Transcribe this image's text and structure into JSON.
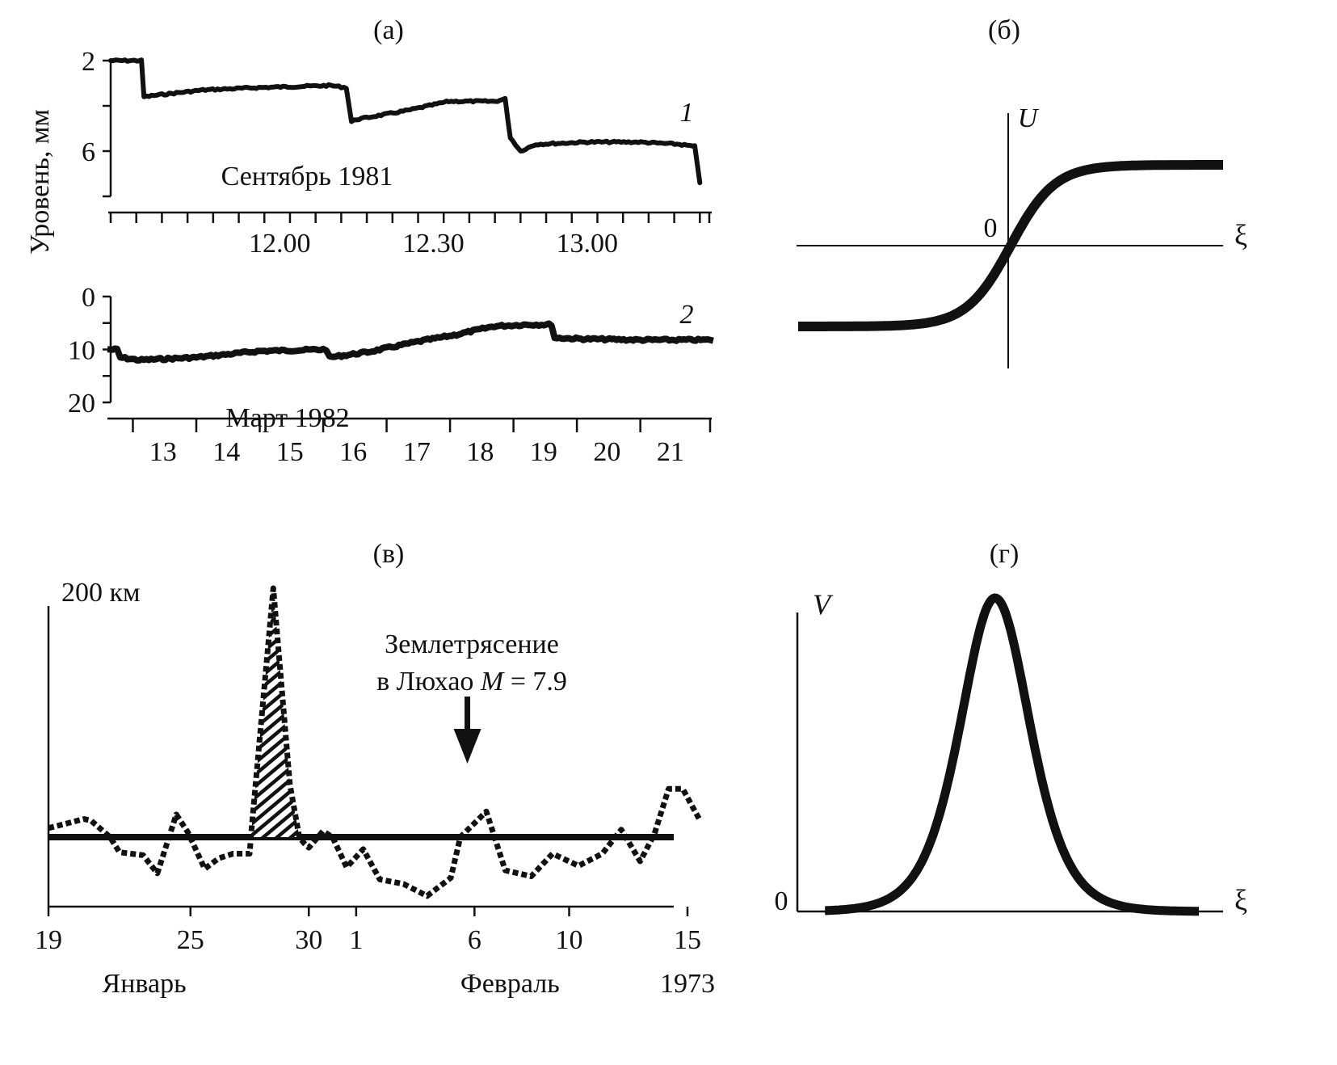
{
  "colors": {
    "ink": "#111111",
    "background": "#ffffff"
  },
  "chart_data": [
    {
      "id": "a1",
      "type": "line",
      "panel_label": "(а)",
      "ylabel": "Уровень, мм",
      "caption": "Сентябрь 1981",
      "curve_label": "1",
      "y_axis": {
        "range": [
          2,
          8
        ],
        "inverted": true,
        "tick_values": [
          2,
          4,
          6,
          8
        ],
        "tick_labels": [
          "2",
          "",
          "6",
          ""
        ]
      },
      "x_axis": {
        "unit": "minutes after 11:30",
        "range": [
          -3,
          114
        ],
        "tick_step": 5,
        "labeled_ticks": [
          {
            "value": 30,
            "label": "12.00"
          },
          {
            "value": 60,
            "label": "12.30"
          },
          {
            "value": 90,
            "label": "13.00"
          }
        ]
      },
      "series": [
        {
          "name": "1",
          "x": [
            -3,
            3,
            3.5,
            7,
            15,
            25,
            40,
            43,
            44,
            45,
            55,
            63,
            72,
            74,
            75,
            77,
            80,
            90,
            100,
            108,
            111,
            111.5,
            112
          ],
          "y": [
            2.0,
            2.0,
            3.6,
            3.5,
            3.3,
            3.2,
            3.1,
            3.2,
            4.7,
            4.6,
            4.2,
            3.8,
            3.8,
            3.7,
            5.4,
            6.0,
            5.7,
            5.6,
            5.6,
            5.7,
            5.8,
            6.6,
            7.4
          ]
        }
      ]
    },
    {
      "id": "a2",
      "type": "line",
      "caption": "Март 1982",
      "curve_label": "2",
      "y_axis": {
        "range": [
          0,
          20
        ],
        "inverted": true,
        "tick_values": [
          0,
          5,
          10,
          15,
          20
        ],
        "tick_labels": [
          "0",
          "",
          "10",
          "",
          "20"
        ]
      },
      "x_axis": {
        "unit": "day of March 1982",
        "range": [
          12.15,
          21.6
        ],
        "ticks": [
          12.5,
          13.5,
          14.5,
          15.5,
          16.5,
          17.5,
          18.5,
          19.5,
          20.5,
          21.6
        ],
        "tick_labels": [
          {
            "value": 13,
            "label": "13"
          },
          {
            "value": 14,
            "label": "14"
          },
          {
            "value": 15,
            "label": "15"
          },
          {
            "value": 16,
            "label": "16"
          },
          {
            "value": 17,
            "label": "17"
          },
          {
            "value": 18,
            "label": "18"
          },
          {
            "value": 19,
            "label": "19"
          },
          {
            "value": 20,
            "label": "20"
          },
          {
            "value": 21,
            "label": "21"
          }
        ]
      },
      "series": [
        {
          "name": "2",
          "x": [
            12.15,
            12.25,
            12.3,
            12.6,
            13.5,
            14.5,
            15.5,
            15.55,
            15.6,
            16.2,
            17.0,
            17.6,
            18.2,
            18.7,
            19.1,
            19.15,
            19.6,
            20.5,
            21.6
          ],
          "y": [
            10,
            10,
            11.5,
            12,
            11.5,
            10.3,
            10,
            10,
            11.5,
            10.5,
            8.5,
            7.2,
            5.6,
            5.3,
            5.3,
            7.8,
            8.0,
            8.2,
            8.2
          ]
        }
      ]
    },
    {
      "id": "b",
      "type": "line",
      "panel_label": "(б)",
      "ylabel": "U",
      "xlabel": "ξ",
      "origin_label": "0",
      "description": "Kink (tanh-shaped) profile U(ξ)",
      "x_axis": {
        "range": [
          -5,
          5
        ]
      },
      "y_axis": {
        "range": [
          -1.2,
          1.6
        ]
      },
      "series": [
        {
          "name": "U",
          "function": "tanh",
          "scale": 0.8,
          "amplitude": 1.0
        }
      ]
    },
    {
      "id": "c",
      "type": "line",
      "panel_label": "(в)",
      "y_axis": {
        "top_label": "200 км",
        "range": [
          -40,
          200
        ]
      },
      "x_axis": {
        "unit": "days from Jan 19, 1973",
        "range": [
          0,
          27.5
        ],
        "tick_labels": [
          {
            "value": 0,
            "label": "19"
          },
          {
            "value": 6,
            "label": "25"
          },
          {
            "value": 11,
            "label": "30"
          },
          {
            "value": 13,
            "label": "1"
          },
          {
            "value": 18,
            "label": "6"
          },
          {
            "value": 22,
            "label": "10"
          },
          {
            "value": 27,
            "label": "15"
          }
        ],
        "month_labels": [
          {
            "value": 2,
            "label": "Январь"
          },
          {
            "value": 19.5,
            "label": "Февраль"
          },
          {
            "value": 27,
            "label": "1973"
          }
        ]
      },
      "baseline": 0,
      "annotation": {
        "line1": "Землетрясение",
        "line2_text": "в Люхао",
        "line2_math": "M",
        "line2_rest": " = 7.9",
        "arrow_at": 17.7
      },
      "series": [
        {
          "name": "distance",
          "style": "dotted",
          "x": [
            0,
            1.5,
            1.8,
            2.6,
            3.0,
            4.0,
            4.6,
            5.4,
            5.9,
            6.6,
            7.2,
            7.8,
            8.5,
            8.55,
            9.5,
            10.2,
            10.6,
            10.8,
            11.0,
            11.6,
            12.0,
            12.6,
            13.3,
            14.0,
            15.0,
            16.0,
            17.0,
            17.4,
            18.5,
            19.3,
            20.4,
            21.3,
            22.4,
            23.4,
            24.2,
            25.0,
            25.6,
            26.2,
            26.8,
            27.5
          ],
          "y": [
            6,
            12,
            11,
            0,
            -10,
            -12,
            -24,
            15,
            3,
            -21,
            -14,
            -11,
            -11,
            0,
            165,
            35,
            0,
            -4,
            -7,
            4,
            0,
            -20,
            -8,
            -28,
            -31,
            -39,
            -27,
            0,
            17,
            -22,
            -26,
            -11,
            -19,
            -11,
            5,
            -16,
            2,
            32,
            32,
            12
          ],
          "highlighted_interval": [
            8.55,
            10.7
          ]
        }
      ]
    },
    {
      "id": "d",
      "type": "line",
      "panel_label": "(г)",
      "ylabel": "V",
      "xlabel": "ξ",
      "origin_label": "0",
      "description": "Soliton (sech²-shaped) profile V(ξ)",
      "x_axis": {
        "range": [
          -5,
          5
        ]
      },
      "y_axis": {
        "range": [
          0,
          1.05
        ]
      },
      "series": [
        {
          "name": "V",
          "function": "sech2",
          "scale": 0.9,
          "center": -0.35,
          "amplitude": 1.0
        }
      ]
    }
  ]
}
